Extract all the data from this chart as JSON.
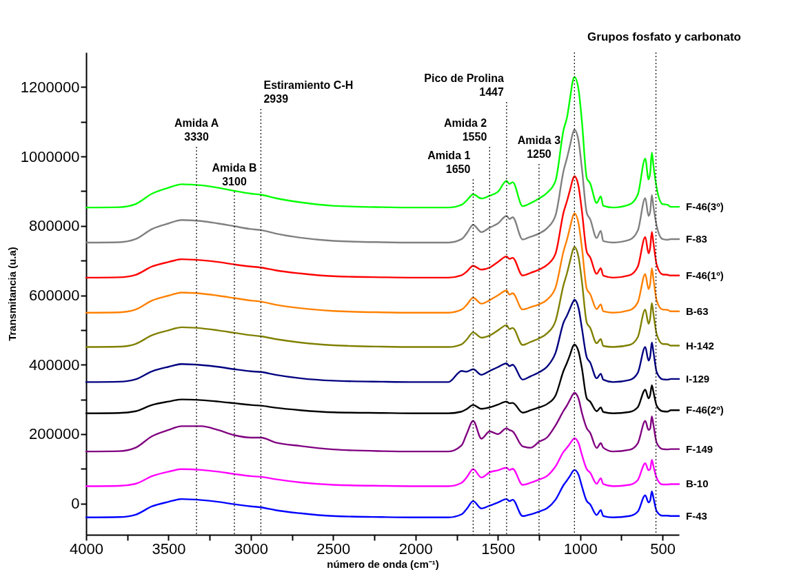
{
  "chart_data": {
    "type": "line",
    "xlabel": "número de onda (cm⁻¹)",
    "ylabel": "Transmitancia (u.a)",
    "legend": false,
    "line_style": "solid",
    "xlim": [
      4000,
      400
    ],
    "ylim": [
      -90000,
      1300000
    ],
    "xticks": [
      4000,
      {
        "value": 3750,
        "label": null
      },
      3500,
      {
        "value": 3250,
        "label": null
      },
      3000,
      {
        "value": 2750,
        "label": null
      },
      2500,
      {
        "value": 2250,
        "label": null
      },
      2000,
      {
        "value": 1750,
        "label": null
      },
      1500,
      {
        "value": 1250,
        "label": null
      },
      1000,
      {
        "value": 750,
        "label": null
      },
      500
    ],
    "yticks": [
      0,
      {
        "value": 100000,
        "label": null
      },
      200000,
      {
        "value": 300000,
        "label": null
      },
      400000,
      {
        "value": 500000,
        "label": null
      },
      600000,
      {
        "value": 700000,
        "label": null
      },
      800000,
      {
        "value": 900000,
        "label": null
      },
      1000000,
      {
        "value": 1100000,
        "label": null
      },
      1200000
    ],
    "x": [
      4000,
      3800,
      3700,
      3600,
      3500,
      3420,
      3300,
      3200,
      3100,
      3000,
      2939,
      2850,
      2700,
      2500,
      2200,
      2000,
      1800,
      1720,
      1690,
      1650,
      1600,
      1550,
      1500,
      1447,
      1430,
      1410,
      1350,
      1300,
      1250,
      1200,
      1150,
      1100,
      1080,
      1060,
      1045,
      1035,
      1010,
      990,
      960,
      940,
      900,
      875,
      860,
      800,
      700,
      650,
      605,
      585,
      575,
      565,
      555,
      535,
      500,
      470,
      450,
      400
    ],
    "series": [
      {
        "name": "F-46(3º)",
        "color": "#00ff00",
        "values": [
          853000.0,
          854000.0,
          863000.0,
          893000.0,
          910000.0,
          920000.0,
          917000.0,
          910000.0,
          901000.0,
          893000.0,
          890000.0,
          880000.0,
          868000.0,
          858000.0,
          854000.0,
          853000.0,
          853000.0,
          861000.0,
          873000.0,
          891000.0,
          879000.0,
          887000.0,
          898000.0,
          930000.0,
          921000.0,
          926000.0,
          857000.0,
          866000.0,
          879000.0,
          896000.0,
          930000.0,
          1079000.0,
          1113000.0,
          1173000.0,
          1218000.0,
          1229000.0,
          1193000.0,
          1103000.0,
          938000.0,
          923000.0,
          866000.0,
          885000.0,
          858000.0,
          853000.0,
          862000.0,
          891000.0,
          994000.0,
          934000.0,
          953000.0,
          1011000.0,
          973000.0,
          908000.0,
          863000.0,
          861000.0,
          855000.0,
          855000.0
        ]
      },
      {
        "name": "F-83",
        "color": "#808080",
        "values": [
          752000.0,
          753000.0,
          762000.0,
          791000.0,
          807000.0,
          817000.0,
          814000.0,
          807000.0,
          799000.0,
          791000.0,
          788000.0,
          778000.0,
          766000.0,
          757000.0,
          753000.0,
          752000.0,
          752000.0,
          762000.0,
          778000.0,
          803000.0,
          782000.0,
          795000.0,
          807000.0,
          829000.0,
          820000.0,
          825000.0,
          761000.0,
          769000.0,
          778000.0,
          794000.0,
          830000.0,
          961000.0,
          996000.0,
          1036000.0,
          1067000.0,
          1077000.0,
          1045000.0,
          967000.0,
          837000.0,
          820000.0,
          765000.0,
          786000.0,
          756000.0,
          752000.0,
          760000.0,
          787000.0,
          880000.0,
          829000.0,
          841000.0,
          889000.0,
          855000.0,
          799000.0,
          762000.0,
          760000.0,
          762000.0,
          762000.0
        ]
      },
      {
        "name": "F-46(1º)",
        "color": "#ff0000",
        "values": [
          651000.0,
          652000.0,
          659000.0,
          683000.0,
          696000.0,
          704000.0,
          701000.0,
          696000.0,
          689000.0,
          683000.0,
          680000.0,
          672000.0,
          663000.0,
          655000.0,
          652000.0,
          651000.0,
          651000.0,
          658000.0,
          668000.0,
          685000.0,
          674000.0,
          680000.0,
          696000.0,
          712000.0,
          705000.0,
          708000.0,
          657000.0,
          665000.0,
          674000.0,
          688000.0,
          720000.0,
          841000.0,
          872000.0,
          907000.0,
          934000.0,
          943000.0,
          914000.0,
          844000.0,
          725000.0,
          710000.0,
          662000.0,
          678000.0,
          657000.0,
          651000.0,
          658000.0,
          683000.0,
          768000.0,
          721000.0,
          737000.0,
          783000.0,
          750000.0,
          687000.0,
          660000.0,
          659000.0,
          657000.0,
          657000.0
        ]
      },
      {
        "name": "B-63",
        "color": "#ff8000",
        "values": [
          550000.0,
          551000.0,
          559000.0,
          585000.0,
          599000.0,
          608000.0,
          605000.0,
          599000.0,
          592000.0,
          585000.0,
          582000.0,
          573000.0,
          563000.0,
          555000.0,
          551000.0,
          550000.0,
          550000.0,
          559000.0,
          572000.0,
          593000.0,
          576000.0,
          586000.0,
          600000.0,
          614000.0,
          602000.0,
          606000.0,
          559000.0,
          566000.0,
          574000.0,
          588000.0,
          622000.0,
          729000.0,
          761000.0,
          799000.0,
          827000.0,
          836000.0,
          807000.0,
          739000.0,
          618000.0,
          604000.0,
          560000.0,
          574000.0,
          554000.0,
          550000.0,
          557000.0,
          580000.0,
          661000.0,
          618000.0,
          633000.0,
          678000.0,
          646000.0,
          584000.0,
          559000.0,
          558000.0,
          554000.0,
          554000.0
        ]
      },
      {
        "name": "H-142",
        "color": "#808000",
        "values": [
          451000.0,
          452000.0,
          460000.0,
          485000.0,
          499000.0,
          508000.0,
          505000.0,
          499000.0,
          492000.0,
          485000.0,
          482000.0,
          474000.0,
          464000.0,
          456000.0,
          452000.0,
          451000.0,
          451000.0,
          459000.0,
          472000.0,
          493000.0,
          478000.0,
          484000.0,
          499000.0,
          514000.0,
          503000.0,
          506000.0,
          457000.0,
          466000.0,
          476000.0,
          491000.0,
          526000.0,
          632000.0,
          664000.0,
          702000.0,
          730000.0,
          739000.0,
          710000.0,
          641000.0,
          521000.0,
          507000.0,
          462000.0,
          474000.0,
          454000.0,
          451000.0,
          457000.0,
          480000.0,
          559000.0,
          518000.0,
          534000.0,
          578000.0,
          546000.0,
          487000.0,
          460000.0,
          459000.0,
          455000.0,
          455000.0
        ]
      },
      {
        "name": "I-129",
        "color": "#000080",
        "values": [
          350000.0,
          351000.0,
          358000.0,
          381000.0,
          394000.0,
          402000.0,
          399000.0,
          394000.0,
          387000.0,
          381000.0,
          379000.0,
          371000.0,
          361000.0,
          354000.0,
          351000.0,
          350000.0,
          350000.0,
          382000.0,
          380000.0,
          387000.0,
          371000.0,
          382000.0,
          393000.0,
          404000.0,
          396000.0,
          400000.0,
          357000.0,
          367000.0,
          378000.0,
          395000.0,
          434000.0,
          523000.0,
          542000.0,
          564000.0,
          580000.0,
          587000.0,
          563000.0,
          506000.0,
          421000.0,
          407000.0,
          361000.0,
          374000.0,
          357000.0,
          350000.0,
          356000.0,
          377000.0,
          451000.0,
          412000.0,
          424000.0,
          464000.0,
          436000.0,
          378000.0,
          358000.0,
          357000.0,
          359000.0,
          359000.0
        ]
      },
      {
        "name": "F-46(2º)",
        "color": "#000000",
        "values": [
          260000.0,
          261000.0,
          266000.0,
          284000.0,
          294000.0,
          300000.0,
          298000.0,
          294000.0,
          289000.0,
          284000.0,
          282000.0,
          276000.0,
          269000.0,
          263000.0,
          261000.0,
          260000.0,
          260000.0,
          265000.0,
          272000.0,
          284000.0,
          273000.0,
          277000.0,
          285000.0,
          294000.0,
          289000.0,
          290000.0,
          262000.0,
          269000.0,
          277000.0,
          287000.0,
          311000.0,
          384000.0,
          406000.0,
          431000.0,
          452000.0,
          458000.0,
          438000.0,
          391000.0,
          303000.0,
          294000.0,
          266000.0,
          277000.0,
          264000.0,
          260000.0,
          264000.0,
          278000.0,
          328000.0,
          303000.0,
          313000.0,
          341000.0,
          321000.0,
          281000.0,
          266000.0,
          265000.0,
          269000.0,
          269000.0
        ]
      },
      {
        "name": "F-149",
        "color": "#800080",
        "values": [
          150000.0,
          151000.0,
          161000.0,
          194000.0,
          212000.0,
          223000.0,
          223000.0,
          212000.0,
          197000.0,
          190000.0,
          190000.0,
          176000.0,
          166000.0,
          156000.0,
          151000.0,
          150000.0,
          150000.0,
          168000.0,
          200000.0,
          238000.0,
          187000.0,
          208000.0,
          200000.0,
          217000.0,
          212000.0,
          208000.0,
          165000.0,
          161000.0,
          178000.0,
          191000.0,
          225000.0,
          268000.0,
          283000.0,
          301000.0,
          314000.0,
          319000.0,
          302000.0,
          262000.0,
          217000.0,
          204000.0,
          160000.0,
          174000.0,
          161000.0,
          150000.0,
          155000.0,
          174000.0,
          238000.0,
          212000.0,
          216000.0,
          251000.0,
          226000.0,
          174000.0,
          157000.0,
          156000.0,
          157000.0,
          157000.0
        ]
      },
      {
        "name": "B-10",
        "color": "#ff00ff",
        "values": [
          50000.0,
          51000.0,
          57000.0,
          79000.0,
          92000.0,
          99000.0,
          97000.0,
          92000.0,
          85000.0,
          79000.0,
          77000.0,
          70000.0,
          61000.0,
          54000.0,
          51000.0,
          50000.0,
          50000.0,
          60000.0,
          75000.0,
          99000.0,
          75000.0,
          90000.0,
          96000.0,
          103000.0,
          97000.0,
          100000.0,
          54000.0,
          60000.0,
          69000.0,
          80000.0,
          107000.0,
          150000.0,
          161000.0,
          174000.0,
          184000.0,
          188000.0,
          174000.0,
          141000.0,
          99000.0,
          89000.0,
          57000.0,
          73000.0,
          56000.0,
          50000.0,
          54000.0,
          68000.0,
          116000.0,
          96000.0,
          99000.0,
          126000.0,
          107000.0,
          73000.0,
          55000.0,
          55000.0,
          56000.0,
          56000.0
        ]
      },
      {
        "name": "F-43",
        "color": "#0000ff",
        "values": [
          -40000.0,
          -39000.0,
          -32000.0,
          -8000.0,
          5000.0,
          13000.0,
          10000.0,
          5000.0,
          -2000.0,
          -8000.0,
          -11000.0,
          -19000.0,
          -28000.0,
          -36000.0,
          -39000.0,
          -40000.0,
          -40000.0,
          -31000.0,
          -16000.0,
          7000.0,
          -14000.0,
          -6000.0,
          3000.0,
          13000.0,
          7000.0,
          11000.0,
          -36000.0,
          -31000.0,
          -23000.0,
          -13000.0,
          11000.0,
          54000.0,
          67000.0,
          81000.0,
          93000.0,
          97000.0,
          83000.0,
          50000.0,
          7000.0,
          -2000.0,
          -33000.0,
          -19000.0,
          -36000.0,
          -40000.0,
          -36000.0,
          -23000.0,
          24000.0,
          3000.0,
          9000.0,
          35000.0,
          16000.0,
          -23000.0,
          -35000.0,
          -35000.0,
          -36000.0,
          -36000.0
        ]
      }
    ],
    "ref_lines": [
      {
        "axis": "x",
        "value": 3330,
        "label": "Amida A\n3330",
        "line_style": "dotted",
        "color": "#000000"
      },
      {
        "axis": "x",
        "value": 3100,
        "label": "Amida B\n3100",
        "line_style": "dotted",
        "color": "#000000"
      },
      {
        "axis": "x",
        "value": 2939,
        "label": "Estiramiento C-H\n2939",
        "line_style": "dotted",
        "color": "#000000"
      },
      {
        "axis": "x",
        "value": 1650,
        "label": "Amida 1\n1650",
        "line_style": "dotted",
        "color": "#000000"
      },
      {
        "axis": "x",
        "value": 1550,
        "label": "Amida 2\n1550",
        "line_style": "dotted",
        "color": "#000000"
      },
      {
        "axis": "x",
        "value": 1447,
        "label": "Pico de Prolina\n1447",
        "line_style": "dotted",
        "color": "#000000"
      },
      {
        "axis": "x",
        "value": 1250,
        "label": "Amida 3\n1250",
        "line_style": "dotted",
        "color": "#000000"
      },
      {
        "axis": "x",
        "value": 1035,
        "line_style": "dotted",
        "color": "#000000"
      },
      {
        "axis": "x",
        "value": 540,
        "line_style": "dotted",
        "color": "#000000"
      }
    ],
    "annotations": [
      "Grupos fosfato y carbonato"
    ]
  }
}
